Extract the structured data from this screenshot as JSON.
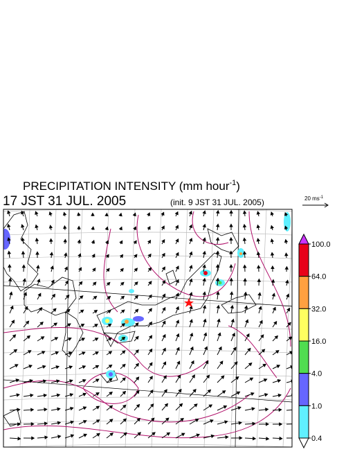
{
  "header": {
    "title_main": "PRECIPITATION INTENSITY (mm hour",
    "title_sup": "-1",
    "title_end": ")",
    "time": "17 JST 31 JUL. 2005",
    "init": "(init. 9 JST 31 JUL. 2005)"
  },
  "reference_arrow": {
    "label": "20 ms",
    "label_sup": "-1"
  },
  "colorbar": {
    "ticks": [
      {
        "value": 100,
        "label": "100.0"
      },
      {
        "value": 64,
        "label": "64.0"
      },
      {
        "value": 32,
        "label": "32.0"
      },
      {
        "value": 16,
        "label": "16.0"
      },
      {
        "value": 4,
        "label": "4.0"
      },
      {
        "value": 1,
        "label": "1.0"
      },
      {
        "value": 0.4,
        "label": "0.4"
      }
    ],
    "colors": [
      "#e8001a",
      "#ffa040",
      "#ffff60",
      "#50dd50",
      "#6666ff",
      "#60f0ff"
    ],
    "over_color": "#cc33ff",
    "under_color": "#ffffff"
  }
}
